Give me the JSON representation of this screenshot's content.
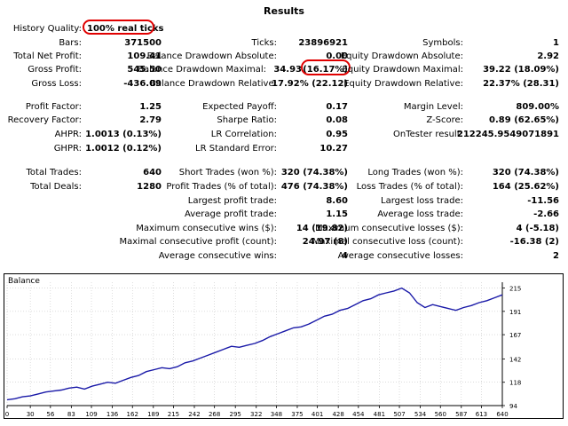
{
  "report": {
    "title": "Results",
    "history_quality": {
      "label": "History Quality:",
      "value": "100% real ticks"
    }
  },
  "stats": {
    "bars": {
      "label": "Bars:",
      "value": "371500"
    },
    "ticks": {
      "label": "Ticks:",
      "value": "23896921"
    },
    "symbols": {
      "label": "Symbols:",
      "value": "1"
    },
    "total_net_profit": {
      "label": "Total Net Profit:",
      "value": "109.41"
    },
    "balance_dd_abs": {
      "label": "Balance Drawdown Absolute:",
      "value": "0.00"
    },
    "equity_dd_abs": {
      "label": "Equity Drawdown Absolute:",
      "value": "2.92"
    },
    "gross_profit": {
      "label": "Gross Profit:",
      "value": "545.50"
    },
    "balance_dd_max": {
      "label": "Balance Drawdown Maximal:",
      "value": "34.93",
      "pct": "(16.17%)"
    },
    "equity_dd_max": {
      "label": "Equity Drawdown Maximal:",
      "value": "39.22 (18.09%)"
    },
    "gross_loss": {
      "label": "Gross Loss:",
      "value": "-436.09"
    },
    "balance_dd_rel": {
      "label": "Balance Drawdown Relative:",
      "value": "17.92% (22.12)"
    },
    "equity_dd_rel": {
      "label": "Equity Drawdown Relative:",
      "value": "22.37% (28.31)"
    },
    "profit_factor": {
      "label": "Profit Factor:",
      "value": "1.25"
    },
    "expected_payoff": {
      "label": "Expected Payoff:",
      "value": "0.17"
    },
    "margin_level": {
      "label": "Margin Level:",
      "value": "809.00%"
    },
    "recovery_factor": {
      "label": "Recovery Factor:",
      "value": "2.79"
    },
    "sharpe_ratio": {
      "label": "Sharpe Ratio:",
      "value": "0.08"
    },
    "z_score": {
      "label": "Z-Score:",
      "value": "0.89 (62.65%)"
    },
    "ahpr": {
      "label": "AHPR:",
      "value": "1.0013 (0.13%)"
    },
    "lr_correlation": {
      "label": "LR Correlation:",
      "value": "0.95"
    },
    "ontester": {
      "label": "OnTester result:",
      "value": "212245.9549071891"
    },
    "ghpr": {
      "label": "GHPR:",
      "value": "1.0012 (0.12%)"
    },
    "lr_std_error": {
      "label": "LR Standard Error:",
      "value": "10.27"
    },
    "total_trades": {
      "label": "Total Trades:",
      "value": "640"
    },
    "short_trades": {
      "label": "Short Trades (won %):",
      "value": "320 (74.38%)"
    },
    "long_trades": {
      "label": "Long Trades (won %):",
      "value": "320 (74.38%)"
    },
    "total_deals": {
      "label": "Total Deals:",
      "value": "1280"
    },
    "profit_trades": {
      "label": "Profit Trades (% of total):",
      "value": "476 (74.38%)"
    },
    "loss_trades": {
      "label": "Loss Trades (% of total):",
      "value": "164 (25.62%)"
    },
    "largest_profit": {
      "label": "Largest profit trade:",
      "value": "8.60"
    },
    "largest_loss": {
      "label": "Largest loss trade:",
      "value": "-11.56"
    },
    "avg_profit": {
      "label": "Average profit trade:",
      "value": "1.15"
    },
    "avg_loss": {
      "label": "Average loss trade:",
      "value": "-2.66"
    },
    "max_consec_wins": {
      "label": "Maximum consecutive wins ($):",
      "value": "14 (19.82)"
    },
    "max_consec_losses": {
      "label": "Maximum consecutive losses ($):",
      "value": "4 (-5.18)"
    },
    "maximal_consec_profit": {
      "label": "Maximal consecutive profit (count):",
      "value": "24.97 (8)"
    },
    "maximal_consec_loss": {
      "label": "Maximal consecutive loss (count):",
      "value": "-16.38 (2)"
    },
    "avg_consec_wins": {
      "label": "Average consecutive wins:",
      "value": "4"
    },
    "avg_consec_losses": {
      "label": "Average consecutive losses:",
      "value": "2"
    }
  },
  "colors": {
    "line": "#1a1aa8",
    "highlight": "#e00000",
    "grid": "#c8c8c8"
  },
  "chart_data": {
    "type": "line",
    "title": "Balance",
    "x_ticks": [
      0,
      30,
      56,
      83,
      109,
      136,
      162,
      189,
      215,
      242,
      268,
      295,
      322,
      348,
      375,
      401,
      428,
      454,
      481,
      507,
      534,
      560,
      587,
      613,
      640
    ],
    "y_ticks": [
      94,
      118,
      142,
      167,
      191,
      215
    ],
    "xlim": [
      0,
      640
    ],
    "ylim": [
      94,
      221
    ],
    "grid": true,
    "series": [
      {
        "x": [
          0,
          10,
          20,
          30,
          40,
          50,
          60,
          70,
          80,
          90,
          100,
          110,
          120,
          130,
          140,
          150,
          160,
          170,
          180,
          190,
          200,
          210,
          220,
          230,
          240,
          250,
          260,
          270,
          280,
          290,
          300,
          310,
          320,
          330,
          340,
          350,
          360,
          370,
          380,
          390,
          400,
          410,
          420,
          430,
          440,
          450,
          460,
          470,
          480,
          490,
          500,
          510,
          520,
          530,
          540,
          550,
          560,
          570,
          580,
          590,
          600,
          610,
          620,
          630,
          640
        ],
        "y": [
          100,
          101,
          103,
          104,
          106,
          108,
          109,
          110,
          112,
          113,
          111,
          114,
          116,
          118,
          117,
          120,
          123,
          125,
          129,
          131,
          133,
          132,
          134,
          138,
          140,
          143,
          146,
          149,
          152,
          155,
          154,
          156,
          158,
          161,
          165,
          168,
          171,
          174,
          175,
          178,
          182,
          186,
          188,
          192,
          194,
          198,
          202,
          204,
          208,
          210,
          212,
          215,
          210,
          200,
          195,
          198,
          196,
          194,
          192,
          195,
          197,
          200,
          202,
          205,
          208
        ]
      }
    ]
  }
}
